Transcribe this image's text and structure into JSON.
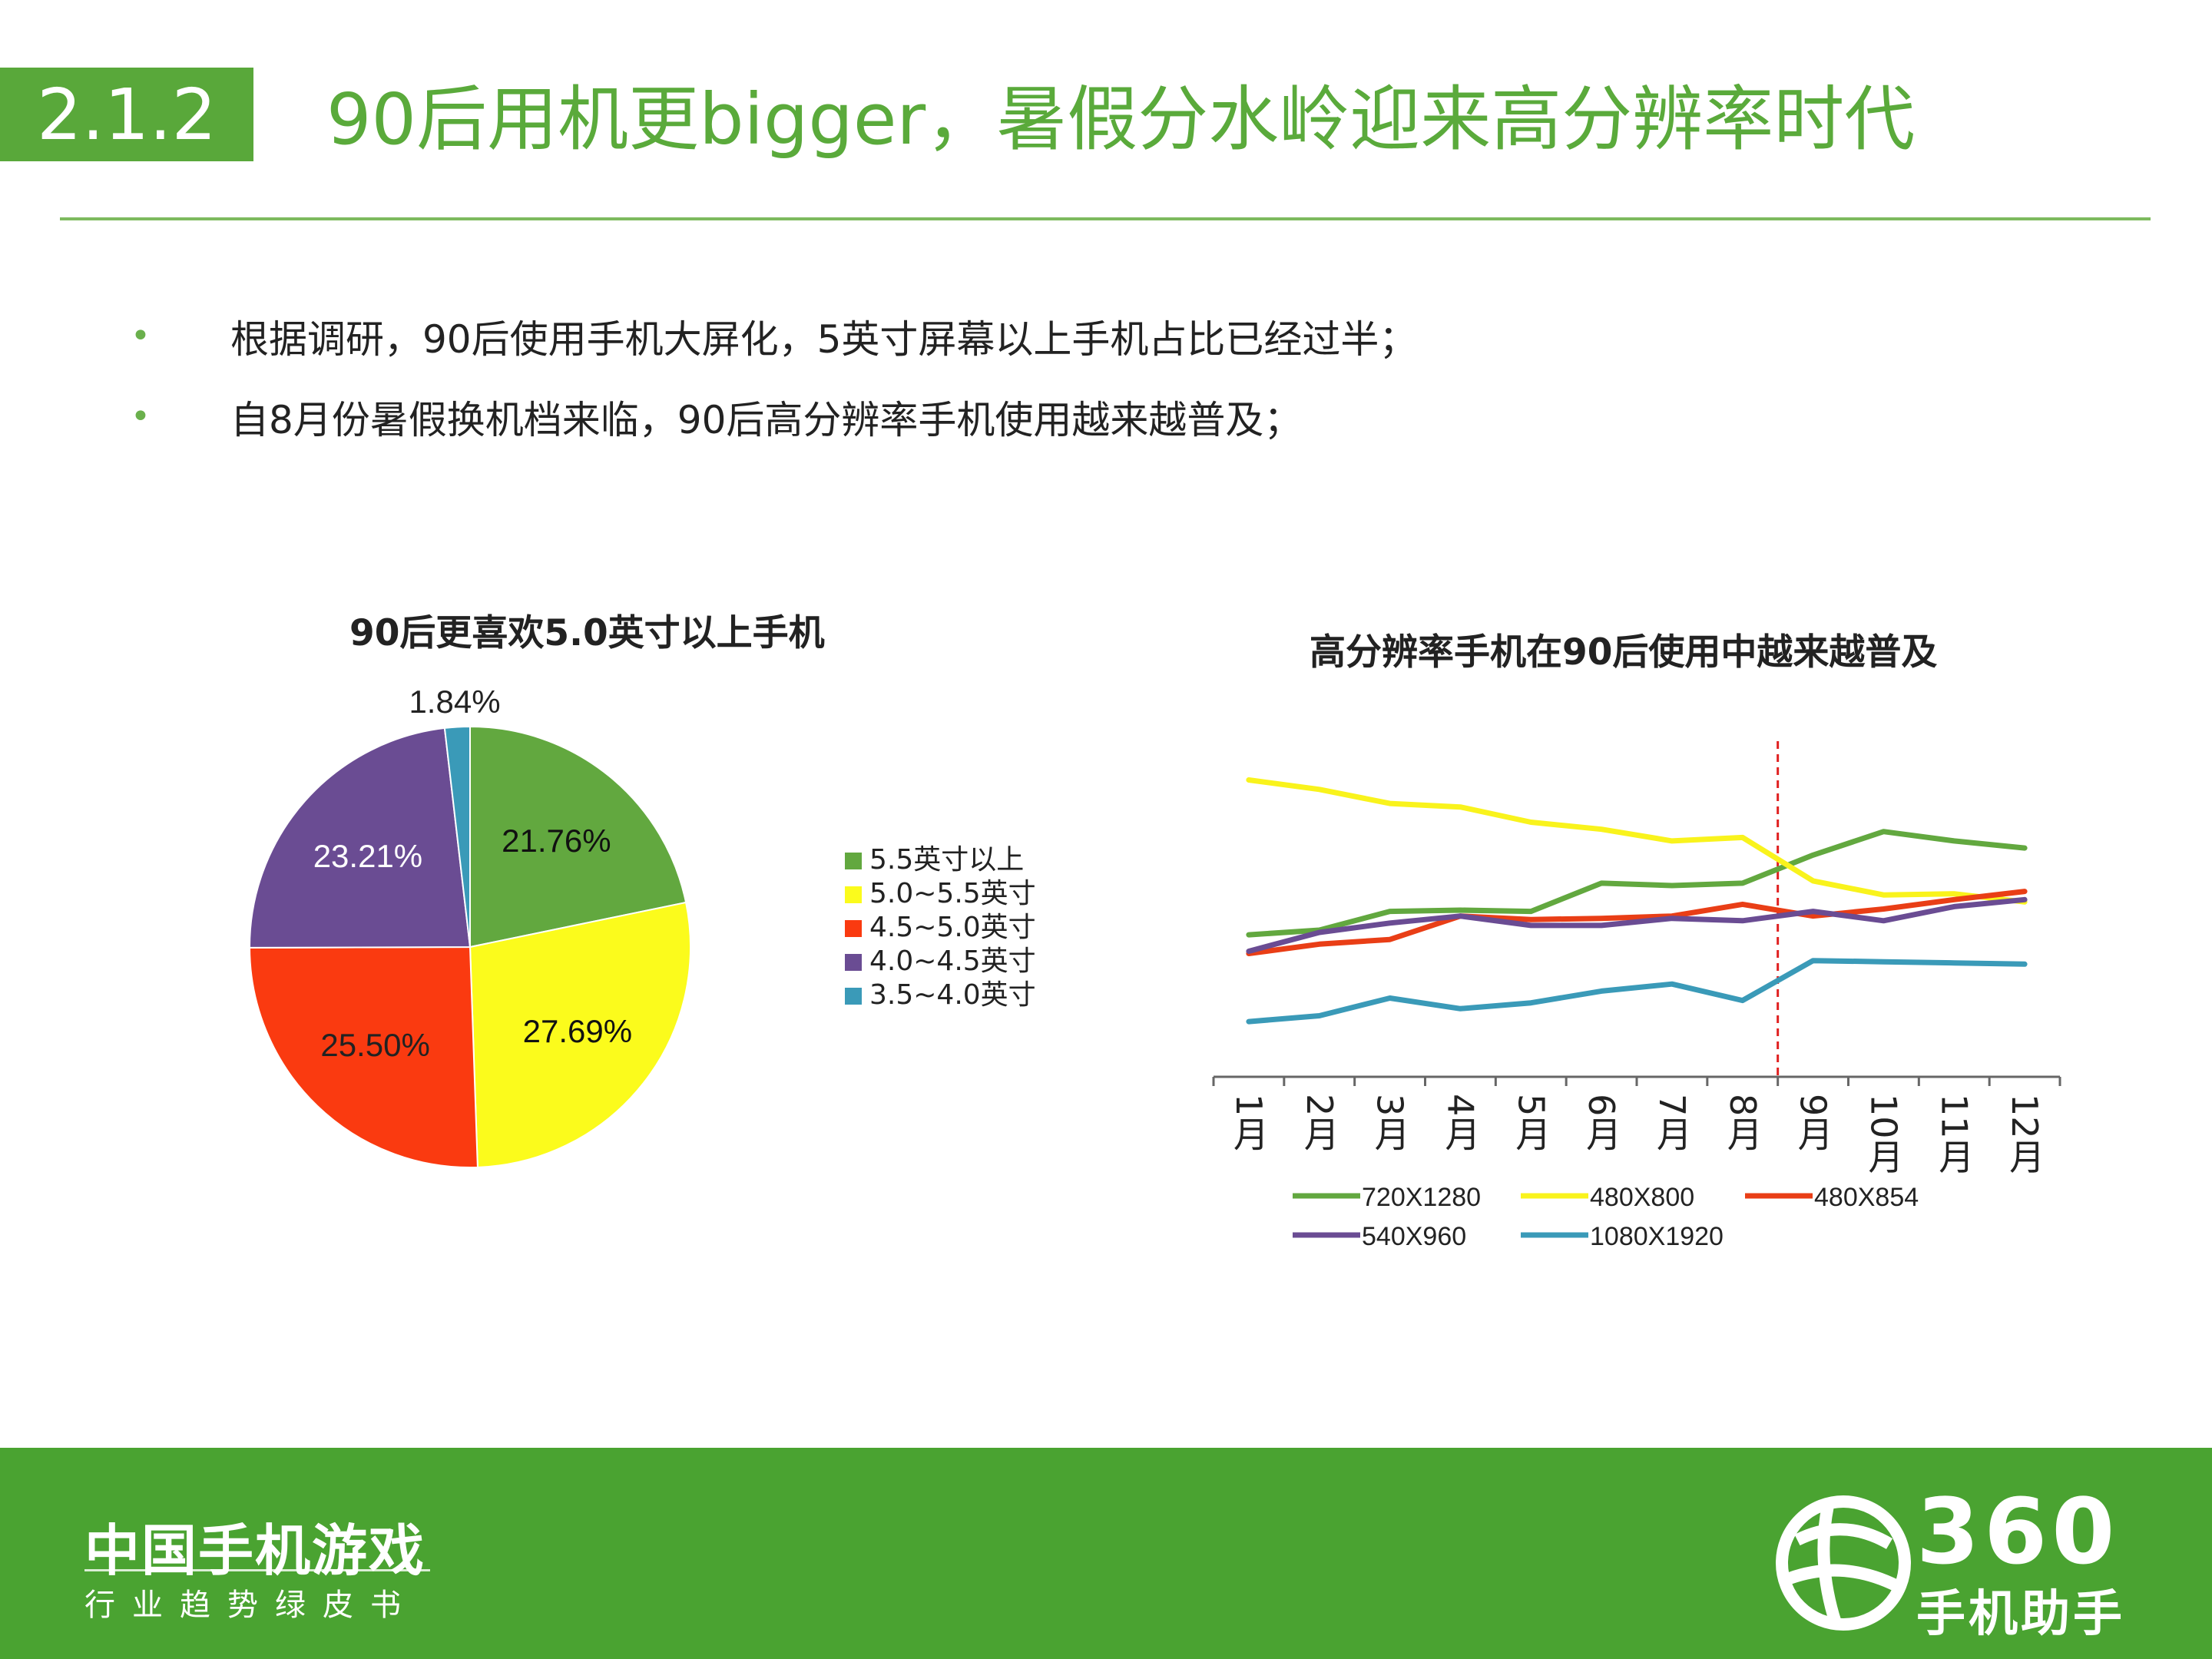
{
  "header": {
    "section_number": "2.1.2",
    "title": "90后用机更bigger，暑假分水岭迎来高分辨率时代"
  },
  "bullets": [
    "根据调研，90后使用手机大屏化，5英寸屏幕以上手机占比已经过半；",
    "自8月份暑假换机档来临，90后高分辨率手机使用越来越普及；"
  ],
  "chart_data": [
    {
      "type": "pie",
      "title": "90后更喜欢5.0英寸以上手机",
      "labels": [
        "5.5英寸以上",
        "5.0~5.5英寸",
        "4.5~5.0英寸",
        "4.0~4.5英寸",
        "3.5~4.0英寸"
      ],
      "values": [
        21.76,
        27.69,
        25.5,
        23.21,
        1.84
      ],
      "value_labels": [
        "21.76%",
        "27.69%",
        "25.50%",
        "23.21%",
        "1.84%"
      ],
      "colors": [
        "#62a83f",
        "#fbfb1c",
        "#fa3a10",
        "#6a4c93",
        "#3a9ab8"
      ],
      "legend_position": "right"
    },
    {
      "type": "line",
      "title": "高分辨率手机在90后使用中越来越普及",
      "categories": [
        "1月",
        "2月",
        "3月",
        "4月",
        "5月",
        "6月",
        "7月",
        "8月",
        "9月",
        "10月",
        "11月",
        "12月"
      ],
      "series": [
        {
          "name": "720X1280",
          "color": "#62a83f",
          "values": [
            54,
            56,
            64,
            64.5,
            64,
            76,
            75,
            76,
            88,
            98,
            94,
            91
          ]
        },
        {
          "name": "480X800",
          "color": "#f9f31c",
          "values": [
            120,
            116,
            110,
            108.5,
            102,
            99,
            94,
            95.5,
            77,
            71,
            71.5,
            68
          ]
        },
        {
          "name": "480X854",
          "color": "#e93e16",
          "values": [
            46,
            50,
            52,
            62,
            60.5,
            61,
            62,
            67,
            62,
            65,
            69,
            72.5
          ]
        },
        {
          "name": "540X960",
          "color": "#6a4c93",
          "values": [
            47,
            55,
            59,
            62,
            58,
            58,
            61,
            60,
            64,
            60,
            66,
            69
          ]
        },
        {
          "name": "1080X1920",
          "color": "#3a9ab8",
          "values": [
            17,
            19.5,
            27,
            22.5,
            25,
            30,
            33,
            26,
            43,
            42.5,
            42,
            41.5
          ]
        }
      ],
      "annotation": "vertical dashed marker between 8月 and 9月",
      "marker_color": "#e02020",
      "legend_position": "bottom",
      "ylim": [
        0,
        130
      ],
      "y_axis_visible": false
    }
  ],
  "footer": {
    "brand": "中国手机游戏",
    "subtitle": "行业趋势绿皮书",
    "logo_number": "360",
    "logo_text": "手机助手"
  }
}
